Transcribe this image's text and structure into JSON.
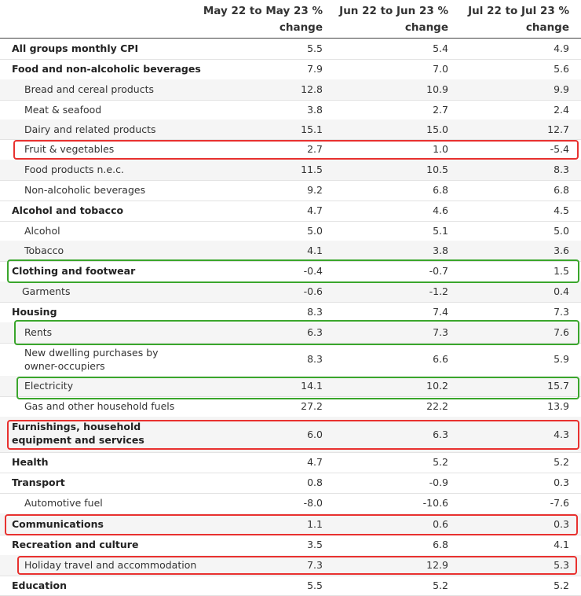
{
  "table": {
    "columns": [
      "May 22 to May 23 % change",
      "Jun 22 to Jun 23 % change",
      "Jul 22 to Jul 23 % change"
    ],
    "rows": [
      {
        "label": "All groups monthly CPI",
        "v": [
          "5.5",
          "5.4",
          "4.9"
        ]
      },
      {
        "label": "Food and non-alcoholic beverages",
        "v": [
          "7.9",
          "7.0",
          "5.6"
        ]
      },
      {
        "label": "Bread and cereal products",
        "v": [
          "12.8",
          "10.9",
          "9.9"
        ]
      },
      {
        "label": "Meat & seafood",
        "v": [
          "3.8",
          "2.7",
          "2.4"
        ]
      },
      {
        "label": "Dairy and related products",
        "v": [
          "15.1",
          "15.0",
          "12.7"
        ]
      },
      {
        "label": "Fruit & vegetables",
        "v": [
          "2.7",
          "1.0",
          "-5.4"
        ]
      },
      {
        "label": "Food products n.e.c.",
        "v": [
          "11.5",
          "10.5",
          "8.3"
        ]
      },
      {
        "label": "Non-alcoholic beverages",
        "v": [
          "9.2",
          "6.8",
          "6.8"
        ]
      },
      {
        "label": "Alcohol and tobacco",
        "v": [
          "4.7",
          "4.6",
          "4.5"
        ]
      },
      {
        "label": "Alcohol",
        "v": [
          "5.0",
          "5.1",
          "5.0"
        ]
      },
      {
        "label": "Tobacco",
        "v": [
          "4.1",
          "3.8",
          "3.6"
        ]
      },
      {
        "label": "Clothing and footwear",
        "v": [
          "-0.4",
          "-0.7",
          "1.5"
        ]
      },
      {
        "label": "Garments",
        "v": [
          "-0.6",
          "-1.2",
          "0.4"
        ]
      },
      {
        "label": "Housing",
        "v": [
          "8.3",
          "7.4",
          "7.3"
        ]
      },
      {
        "label": "Rents",
        "v": [
          "6.3",
          "7.3",
          "7.6"
        ]
      },
      {
        "label": "New dwelling purchases by owner-occupiers",
        "v": [
          "8.3",
          "6.6",
          "5.9"
        ]
      },
      {
        "label": "Electricity",
        "v": [
          "14.1",
          "10.2",
          "15.7"
        ]
      },
      {
        "label": "Gas and other household fuels",
        "v": [
          "27.2",
          "22.2",
          "13.9"
        ]
      },
      {
        "label": "Furnishings, household equipment and services",
        "v": [
          "6.0",
          "6.3",
          "4.3"
        ]
      },
      {
        "label": "Health",
        "v": [
          "4.7",
          "5.2",
          "5.2"
        ]
      },
      {
        "label": "Transport",
        "v": [
          "0.8",
          "-0.9",
          "0.3"
        ]
      },
      {
        "label": "Automotive fuel",
        "v": [
          "-8.0",
          "-10.6",
          "-7.6"
        ]
      },
      {
        "label": "Communications",
        "v": [
          "1.1",
          "0.6",
          "0.3"
        ]
      },
      {
        "label": "Recreation and culture",
        "v": [
          "3.5",
          "6.8",
          "4.1"
        ]
      },
      {
        "label": "Holiday travel and accommodation",
        "v": [
          "7.3",
          "12.9",
          "5.3"
        ]
      },
      {
        "label": "Education",
        "v": [
          "5.5",
          "5.2",
          "5.2"
        ]
      }
    ]
  },
  "highlight_colors": {
    "red": "#e8312f",
    "green": "#3aa62c"
  }
}
